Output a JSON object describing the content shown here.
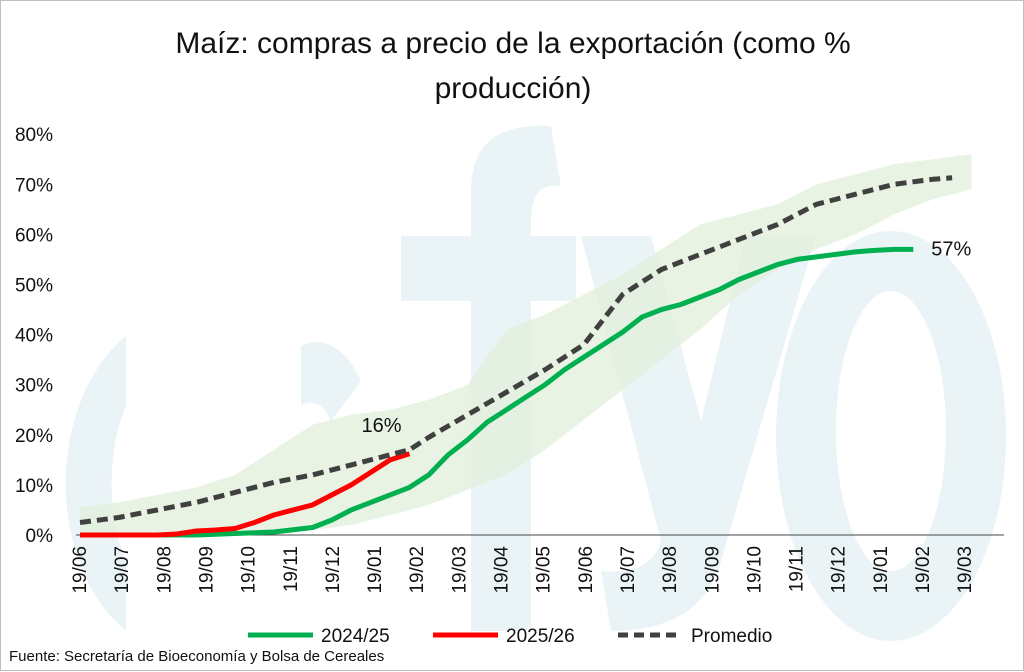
{
  "chart_data": {
    "type": "line",
    "title": "Maíz: compras a precio de la exportación (como % producción)",
    "title_lines": [
      "Maíz: compras a precio de la exportación (como %",
      "producción)"
    ],
    "ylim": [
      0,
      80
    ],
    "y_ticks": [
      "0%",
      "10%",
      "20%",
      "30%",
      "40%",
      "50%",
      "60%",
      "70%",
      "80%"
    ],
    "x_ticks": [
      "19/06",
      "19/07",
      "19/08",
      "19/09",
      "19/10",
      "19/11",
      "19/12",
      "19/01",
      "19/02",
      "19/03",
      "19/04",
      "19/05",
      "19/06",
      "19/07",
      "19/08",
      "19/09",
      "19/10",
      "19/11",
      "19/12",
      "19/01",
      "19/02",
      "19/03"
    ],
    "x_unit": "week index (0 = 19/06, one tick every ~4.35 weeks)",
    "band": {
      "x": [
        0,
        4,
        8,
        12,
        16,
        20,
        24,
        28,
        32,
        36,
        40,
        44,
        48,
        52,
        56,
        60,
        64,
        68,
        72,
        76,
        80,
        84,
        88,
        92
      ],
      "lower": [
        0,
        0,
        0,
        0,
        0,
        0,
        1,
        2,
        4,
        6,
        9,
        12,
        17,
        23,
        29,
        35,
        41,
        48,
        53,
        57,
        60,
        64,
        67,
        69
      ],
      "upper": [
        5.5,
        6.5,
        8,
        9.5,
        12,
        17,
        22,
        24,
        25,
        27,
        30,
        41,
        44,
        48,
        52,
        57,
        62,
        64,
        66,
        70,
        72,
        74,
        75,
        76
      ]
    },
    "series": [
      {
        "name": "2024/25",
        "color": "#00b050",
        "x": [
          0,
          4,
          8,
          12,
          16,
          20,
          24,
          26,
          28,
          30,
          32,
          34,
          36,
          38,
          40,
          42,
          44,
          46,
          48,
          50,
          52,
          54,
          56,
          58,
          60,
          62,
          64,
          66,
          68,
          70,
          72,
          74,
          76,
          78,
          80,
          82,
          84,
          86
        ],
        "values": [
          0,
          0,
          0,
          0,
          0.3,
          0.6,
          1.5,
          3,
          5,
          6.5,
          8,
          9.5,
          12,
          16,
          19,
          22.5,
          25,
          27.5,
          30,
          33,
          35.5,
          38,
          40.5,
          43.5,
          45,
          46,
          47.5,
          49,
          51,
          52.5,
          54,
          55,
          55.5,
          56,
          56.5,
          56.8,
          57,
          57
        ]
      },
      {
        "name": "2025/26",
        "color": "#ff0000",
        "x": [
          0,
          4,
          8,
          10,
          12,
          14,
          16,
          18,
          20,
          22,
          24,
          26,
          28,
          30,
          32,
          34
        ],
        "values": [
          0,
          0,
          0,
          0.2,
          0.8,
          1,
          1.3,
          2.5,
          4,
          5,
          6,
          8,
          10,
          12.5,
          15,
          16.2
        ]
      },
      {
        "name": "Promedio",
        "color": "#404040",
        "x": [
          0,
          4,
          8,
          12,
          16,
          20,
          24,
          28,
          32,
          34,
          36,
          40,
          44,
          48,
          52,
          56,
          60,
          64,
          68,
          72,
          76,
          80,
          84,
          88,
          90
        ],
        "values": [
          2.5,
          3.5,
          5,
          6.5,
          8.5,
          10.5,
          12,
          14,
          16,
          17,
          19.5,
          24,
          28.5,
          33,
          38,
          48,
          53,
          56,
          59,
          62,
          66,
          68,
          70,
          71,
          71.3
        ]
      }
    ],
    "annotations": [
      {
        "text": "16%",
        "series": "2025/26"
      },
      {
        "text": "57%",
        "series": "2024/25"
      }
    ],
    "legend": {
      "placement": "bottom",
      "entries": [
        "2024/25",
        "2025/26",
        "Promedio"
      ]
    },
    "grid": false
  },
  "watermark": {
    "text": "cfyo",
    "color": "#4fa8b8"
  },
  "source": "Fuente: Secretaría de Bioeconomía y Bolsa de Cereales"
}
